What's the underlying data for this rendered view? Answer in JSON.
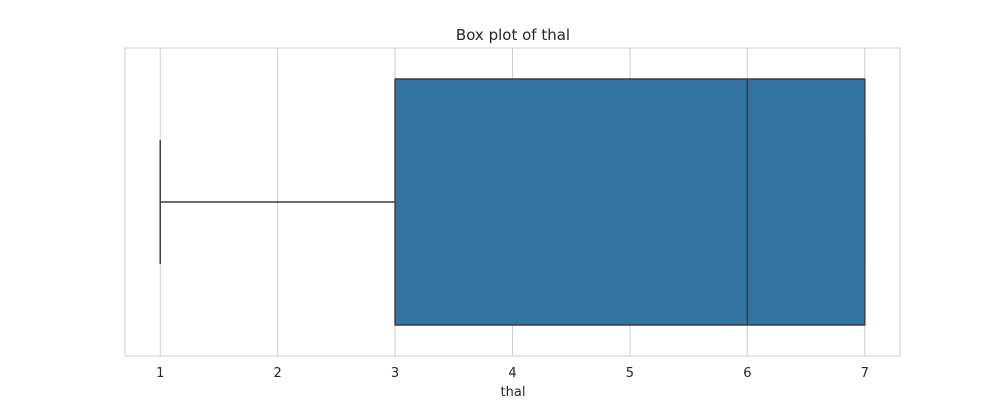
{
  "chart_data": {
    "type": "box",
    "title": "Box plot of thal",
    "xlabel": "thal",
    "ylabel": "",
    "xlim": [
      0.7,
      7.3
    ],
    "grid": true,
    "orientation": "horizontal",
    "xticks": [
      1,
      2,
      3,
      4,
      5,
      6,
      7
    ],
    "tick_labels": [
      "1",
      "2",
      "3",
      "4",
      "5",
      "6",
      "7"
    ],
    "box": {
      "whisker_low": 1,
      "q1": 3,
      "median": 6,
      "q3": 7,
      "whisker_high": 7
    },
    "colors": {
      "box_fill": "#3274a1",
      "line": "#3d3d3d",
      "grid": "#cccccc",
      "frame": "#cccccc"
    }
  }
}
